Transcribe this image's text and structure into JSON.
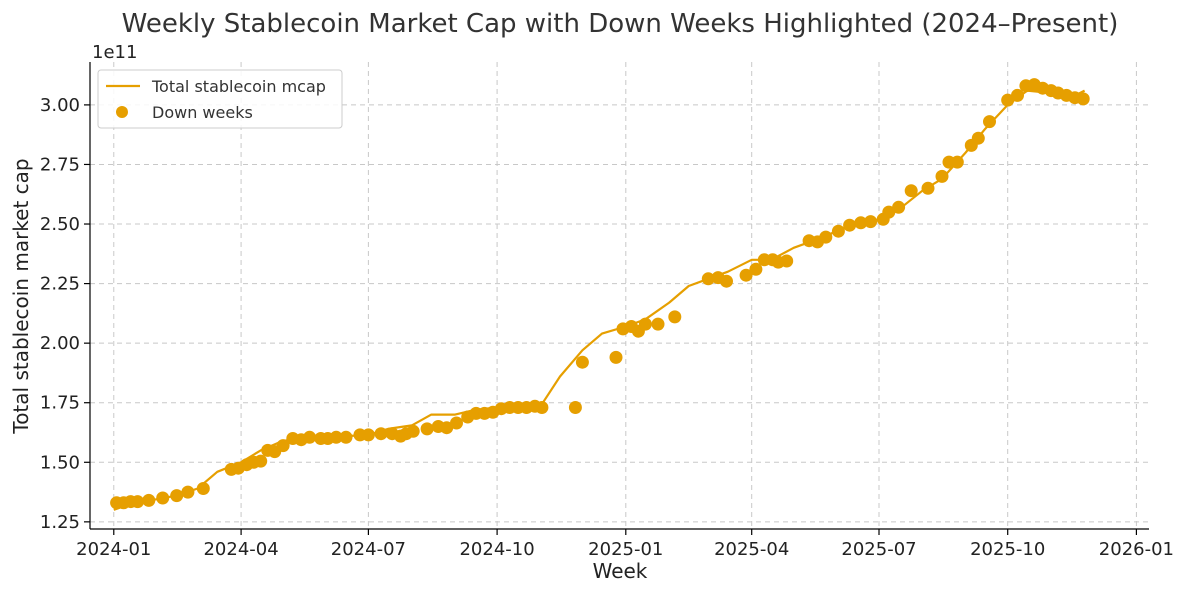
{
  "chart_data": {
    "type": "line",
    "title": "Weekly Stablecoin Market Cap with Down Weeks Highlighted (2024–Present)",
    "xlabel": "Week",
    "ylabel": "Total stablecoin market cap",
    "y_offset_label": "1e11",
    "ylim": [
      1.22,
      3.18
    ],
    "xlim": [
      "2023-12-15",
      "2026-01-10"
    ],
    "x_ticks": [
      "2024-01",
      "2024-04",
      "2024-07",
      "2024-10",
      "2025-01",
      "2025-04",
      "2025-07",
      "2025-10",
      "2026-01"
    ],
    "y_ticks": [
      1.25,
      1.5,
      1.75,
      2.0,
      2.25,
      2.5,
      2.75,
      3.0
    ],
    "grid": true,
    "legend_position": "top-left",
    "colors": {
      "line": "#E69F00",
      "marker": "#E69F00"
    },
    "series": [
      {
        "name": "Total stablecoin mcap",
        "kind": "line",
        "x": [
          "2024-01-01",
          "2024-01-15",
          "2024-02-01",
          "2024-02-15",
          "2024-03-01",
          "2024-03-15",
          "2024-04-01",
          "2024-04-15",
          "2024-05-01",
          "2024-05-15",
          "2024-06-01",
          "2024-06-15",
          "2024-07-01",
          "2024-07-15",
          "2024-08-01",
          "2024-08-15",
          "2024-09-01",
          "2024-09-15",
          "2024-10-01",
          "2024-10-15",
          "2024-11-01",
          "2024-11-15",
          "2024-12-01",
          "2024-12-15",
          "2025-01-01",
          "2025-01-15",
          "2025-02-01",
          "2025-02-15",
          "2025-03-01",
          "2025-03-15",
          "2025-04-01",
          "2025-04-15",
          "2025-05-01",
          "2025-05-15",
          "2025-06-01",
          "2025-06-15",
          "2025-07-01",
          "2025-07-15",
          "2025-08-01",
          "2025-08-15",
          "2025-09-01",
          "2025-09-15",
          "2025-10-01",
          "2025-10-15",
          "2025-11-01",
          "2025-11-15",
          "2025-11-25"
        ],
        "y": [
          1.3,
          1.33,
          1.345,
          1.36,
          1.39,
          1.46,
          1.5,
          1.55,
          1.59,
          1.6,
          1.605,
          1.61,
          1.615,
          1.64,
          1.655,
          1.7,
          1.7,
          1.72,
          1.73,
          1.73,
          1.735,
          1.86,
          1.97,
          2.04,
          2.07,
          2.1,
          2.17,
          2.24,
          2.27,
          2.3,
          2.35,
          2.35,
          2.4,
          2.43,
          2.47,
          2.5,
          2.52,
          2.56,
          2.64,
          2.69,
          2.8,
          2.9,
          3.0,
          3.06,
          3.05,
          3.03,
          3.06
        ]
      },
      {
        "name": "Down weeks",
        "kind": "scatter",
        "x": [
          "2024-01-03",
          "2024-01-08",
          "2024-01-13",
          "2024-01-18",
          "2024-01-26",
          "2024-02-05",
          "2024-02-15",
          "2024-02-23",
          "2024-03-05",
          "2024-03-25",
          "2024-03-30",
          "2024-04-05",
          "2024-04-10",
          "2024-04-15",
          "2024-04-20",
          "2024-04-25",
          "2024-05-01",
          "2024-05-08",
          "2024-05-14",
          "2024-05-20",
          "2024-05-28",
          "2024-06-02",
          "2024-06-08",
          "2024-06-15",
          "2024-06-25",
          "2024-07-01",
          "2024-07-10",
          "2024-07-18",
          "2024-07-24",
          "2024-07-28",
          "2024-08-02",
          "2024-08-12",
          "2024-08-20",
          "2024-08-26",
          "2024-09-02",
          "2024-09-10",
          "2024-09-16",
          "2024-09-22",
          "2024-09-28",
          "2024-10-04",
          "2024-10-10",
          "2024-10-16",
          "2024-10-22",
          "2024-10-28",
          "2024-11-02",
          "2024-11-26",
          "2024-12-01",
          "2024-12-25",
          "2024-12-30",
          "2025-01-05",
          "2025-01-10",
          "2025-01-15",
          "2025-01-24",
          "2025-02-05",
          "2025-03-01",
          "2025-03-08",
          "2025-03-14",
          "2025-03-28",
          "2025-04-04",
          "2025-04-10",
          "2025-04-16",
          "2025-04-20",
          "2025-04-26",
          "2025-05-12",
          "2025-05-18",
          "2025-05-24",
          "2025-06-02",
          "2025-06-10",
          "2025-06-18",
          "2025-06-25",
          "2025-07-04",
          "2025-07-08",
          "2025-07-15",
          "2025-07-24",
          "2025-08-05",
          "2025-08-15",
          "2025-08-20",
          "2025-08-26",
          "2025-09-05",
          "2025-09-10",
          "2025-09-18",
          "2025-10-01",
          "2025-10-08",
          "2025-10-14",
          "2025-10-20",
          "2025-10-26",
          "2025-11-01",
          "2025-11-06",
          "2025-11-12",
          "2025-11-18",
          "2025-11-24"
        ],
        "y": [
          1.33,
          1.33,
          1.335,
          1.335,
          1.34,
          1.35,
          1.36,
          1.375,
          1.39,
          1.47,
          1.475,
          1.49,
          1.5,
          1.505,
          1.55,
          1.545,
          1.57,
          1.6,
          1.595,
          1.605,
          1.6,
          1.6,
          1.605,
          1.605,
          1.615,
          1.615,
          1.62,
          1.62,
          1.61,
          1.62,
          1.63,
          1.64,
          1.65,
          1.645,
          1.665,
          1.69,
          1.705,
          1.705,
          1.71,
          1.725,
          1.73,
          1.73,
          1.73,
          1.735,
          1.73,
          1.73,
          1.92,
          1.94,
          2.06,
          2.07,
          2.05,
          2.08,
          2.08,
          2.11,
          2.27,
          2.275,
          2.26,
          2.285,
          2.31,
          2.35,
          2.35,
          2.34,
          2.345,
          2.43,
          2.425,
          2.445,
          2.47,
          2.495,
          2.505,
          2.51,
          2.52,
          2.55,
          2.57,
          2.64,
          2.65,
          2.7,
          2.76,
          2.76,
          2.83,
          2.86,
          2.93,
          3.02,
          3.04,
          3.08,
          3.085,
          3.07,
          3.06,
          3.05,
          3.04,
          3.03,
          3.025
        ]
      }
    ]
  }
}
